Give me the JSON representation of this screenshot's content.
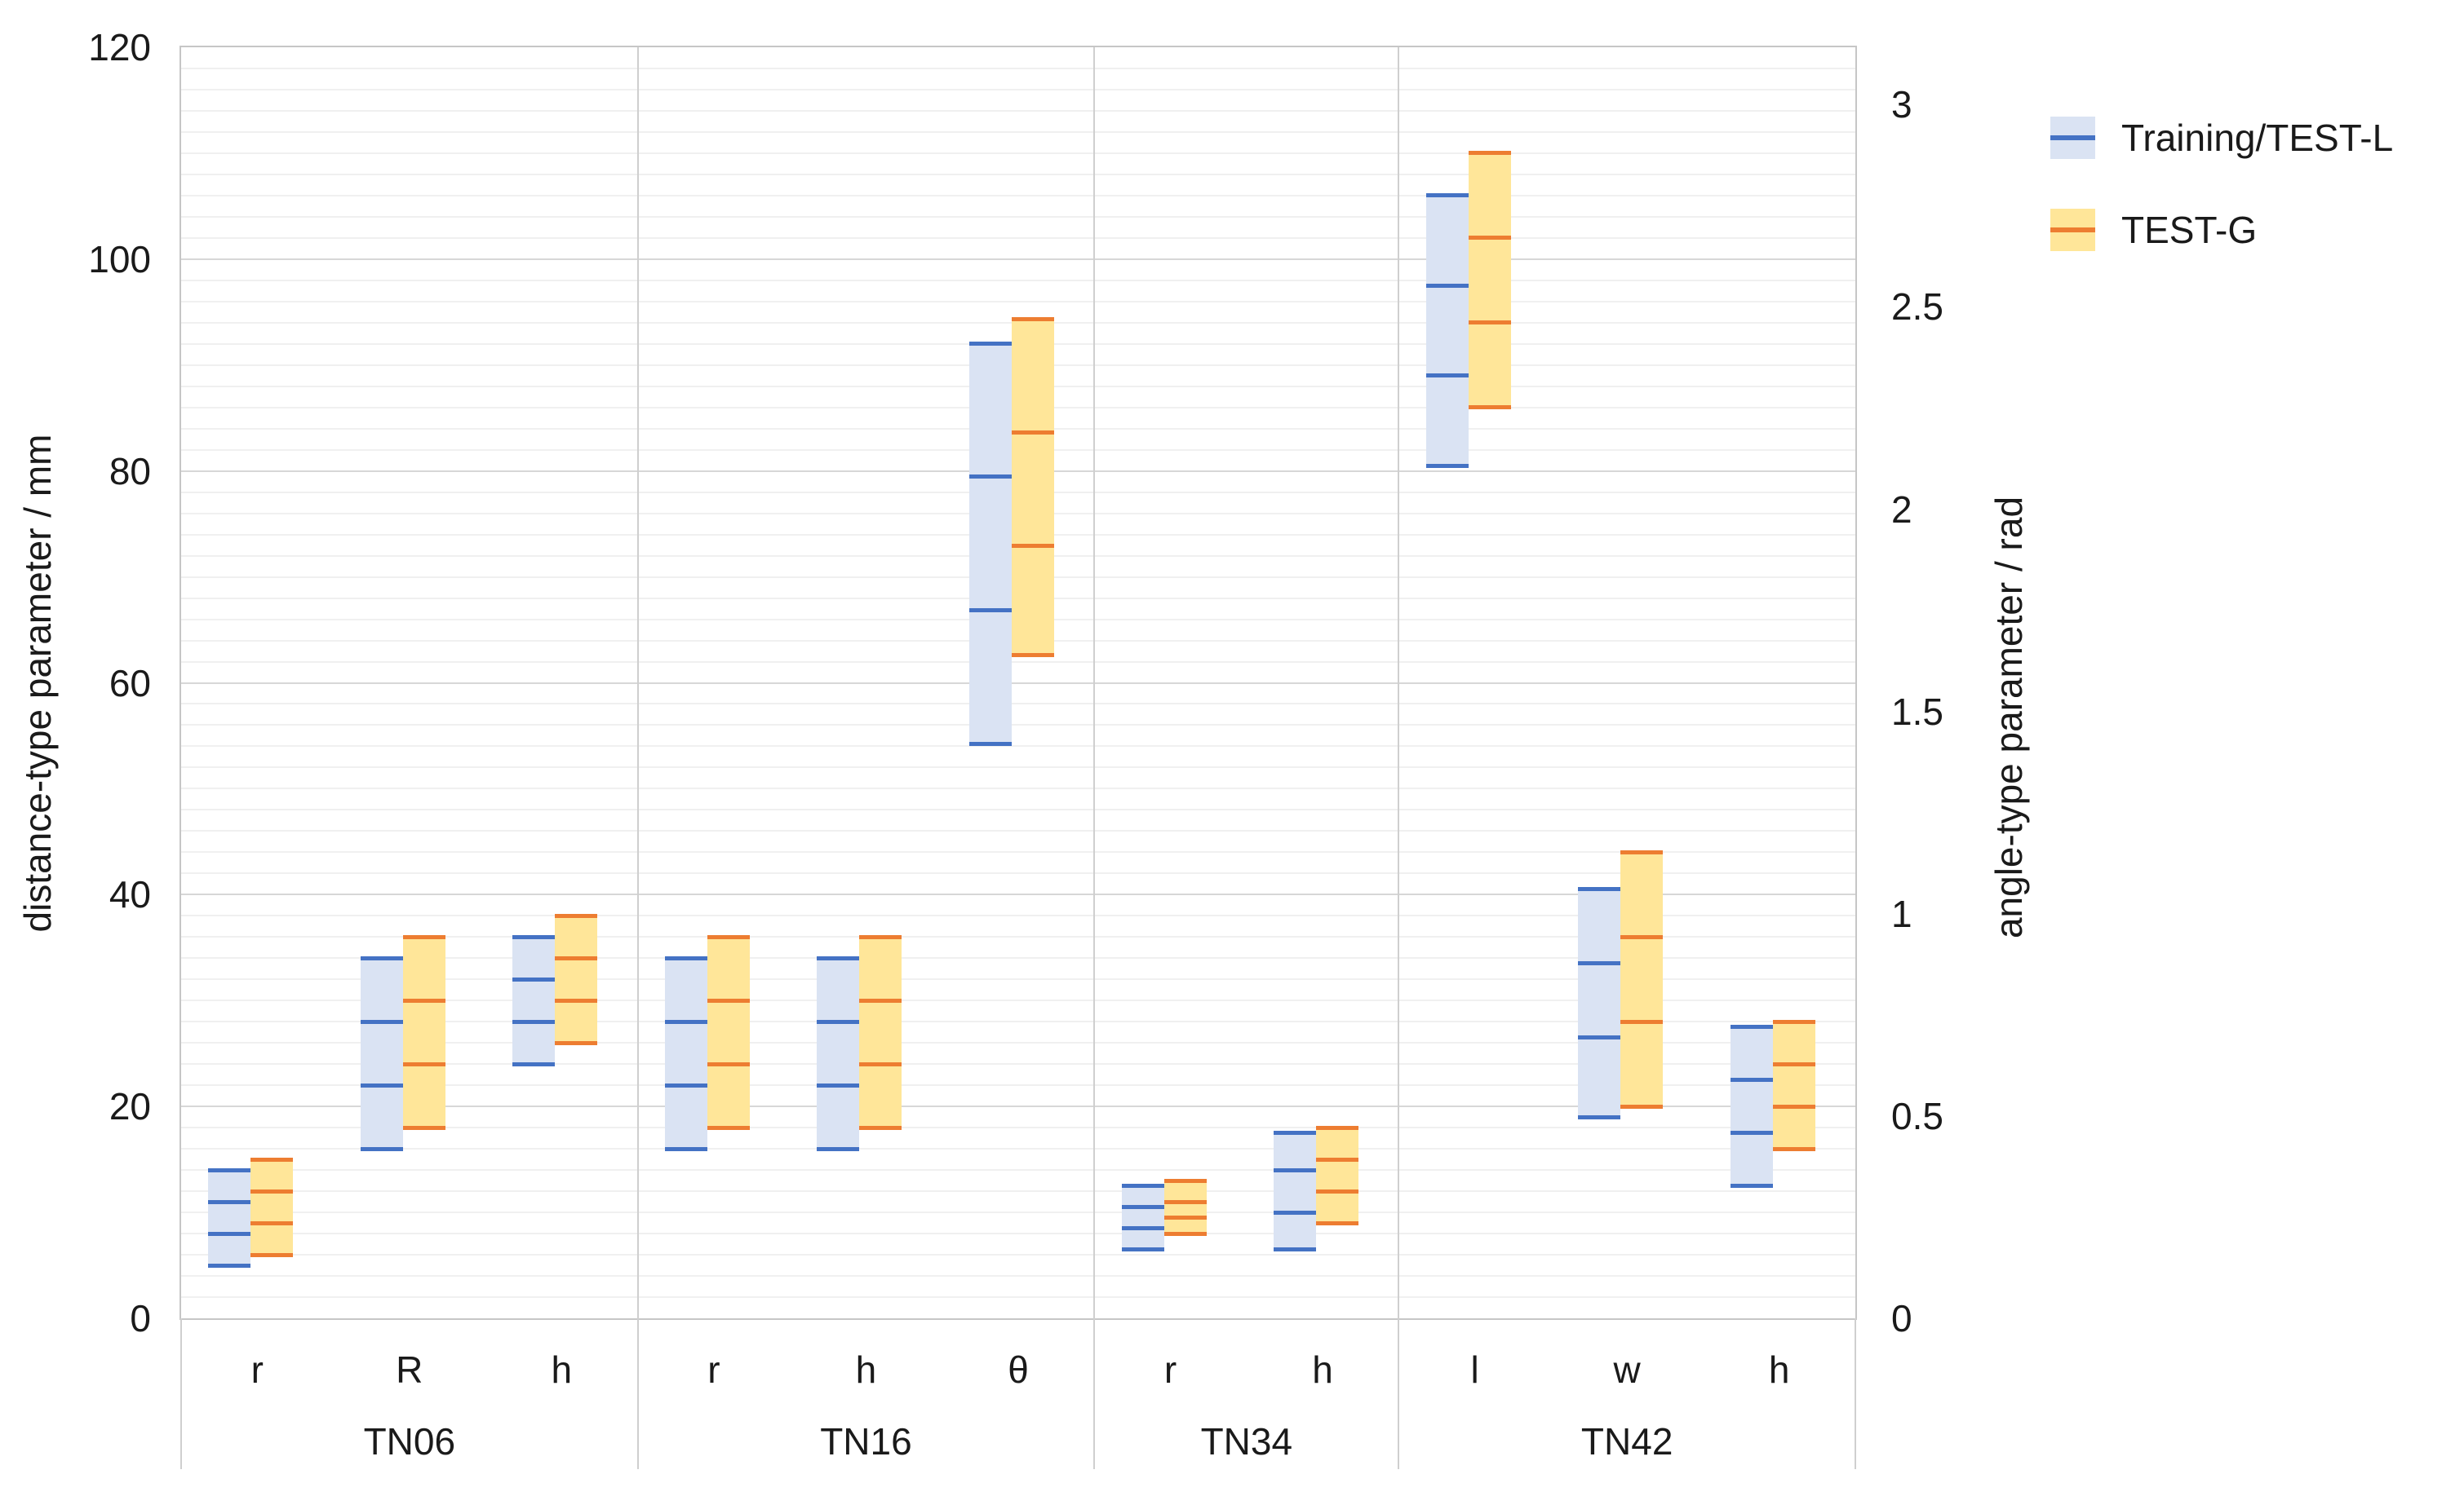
{
  "page": {
    "background": "#ffffff",
    "text_color": "#1a1a1a"
  },
  "legend": {
    "items": [
      {
        "label": "Training/TEST-L",
        "fill": "#dae3f3",
        "line": "#4472c4"
      },
      {
        "label": "TEST-G",
        "fill": "#ffe699",
        "line": "#ed7d31"
      }
    ]
  },
  "chart_data": {
    "type": "floating-box",
    "description": "Paired floating range boxes (min, lower, upper, max lines) per geometric parameter, grouped by test case. Distance parameters read on left mm axis; angle parameter θ reads on right rad axis.",
    "left_axis": {
      "label": "distance-type parameter / mm",
      "min": 0,
      "max": 120,
      "ticks": [
        "0",
        "20",
        "40",
        "60",
        "80",
        "100",
        "120"
      ],
      "tick_values": [
        0,
        20,
        40,
        60,
        80,
        100,
        120
      ],
      "minor_grid_step": 2,
      "major_grid_step": 20,
      "grid": "on"
    },
    "right_axis": {
      "label": "angle-type parameter / rad",
      "min": 0,
      "max": 3.1416,
      "ticks": [
        "0",
        "0.5",
        "1",
        "1.5",
        "2",
        "2.5",
        "3"
      ],
      "tick_values": [
        0,
        0.5,
        1,
        1.5,
        2,
        2.5,
        3
      ]
    },
    "series": [
      {
        "name": "Training/TEST-L",
        "key": "training",
        "fill": "#dae3f3",
        "line": "#4472c4"
      },
      {
        "name": "TEST-G",
        "key": "test_g",
        "fill": "#ffe699",
        "line": "#ed7d31"
      }
    ],
    "value_lines": [
      "min",
      "lower",
      "upper",
      "max"
    ],
    "legend_position": "right-top",
    "groups": [
      {
        "label": "TN06",
        "params": [
          {
            "label": "r",
            "axis": "mm",
            "training": [
              5,
              8,
              11,
              14
            ],
            "test_g": [
              6,
              9,
              12,
              15
            ]
          },
          {
            "label": "R",
            "axis": "mm",
            "training": [
              16,
              22,
              28,
              34
            ],
            "test_g": [
              18,
              24,
              30,
              36
            ]
          },
          {
            "label": "h",
            "axis": "mm",
            "training": [
              24,
              28,
              32,
              36
            ],
            "test_g": [
              26,
              30,
              34,
              38
            ]
          }
        ]
      },
      {
        "label": "TN16",
        "params": [
          {
            "label": "r",
            "axis": "mm",
            "training": [
              16,
              22,
              28,
              34
            ],
            "test_g": [
              18,
              24,
              30,
              36
            ]
          },
          {
            "label": "h",
            "axis": "mm",
            "training": [
              16,
              22,
              28,
              34
            ],
            "test_g": [
              18,
              24,
              30,
              36
            ]
          },
          {
            "label": "θ",
            "axis": "rad",
            "training": [
              1.42,
              1.75,
              2.08,
              2.41
            ],
            "test_g": [
              1.64,
              1.91,
              2.19,
              2.47
            ]
          }
        ]
      },
      {
        "label": "TN34",
        "params": [
          {
            "label": "r",
            "axis": "mm",
            "training": [
              6.5,
              8.5,
              10.5,
              12.5
            ],
            "test_g": [
              8,
              9.5,
              11,
              13
            ]
          },
          {
            "label": "h",
            "axis": "mm",
            "training": [
              6.5,
              10,
              14,
              17.5
            ],
            "test_g": [
              9,
              12,
              15,
              18
            ]
          }
        ]
      },
      {
        "label": "TN42",
        "params": [
          {
            "label": "l",
            "axis": "mm",
            "training": [
              80.5,
              89,
              97.5,
              106
            ],
            "test_g": [
              86,
              94,
              102,
              110
            ]
          },
          {
            "label": "w",
            "axis": "mm",
            "training": [
              19,
              26.5,
              33.5,
              40.5
            ],
            "test_g": [
              20,
              28,
              36,
              44
            ]
          },
          {
            "label": "h",
            "axis": "mm",
            "training": [
              12.5,
              17.5,
              22.5,
              27.5
            ],
            "test_g": [
              16,
              20,
              24,
              28
            ]
          }
        ]
      }
    ],
    "grid_colors": {
      "minor": "#f0f0f0",
      "major": "#d7d7d7",
      "border": "#c6c6c6"
    }
  }
}
